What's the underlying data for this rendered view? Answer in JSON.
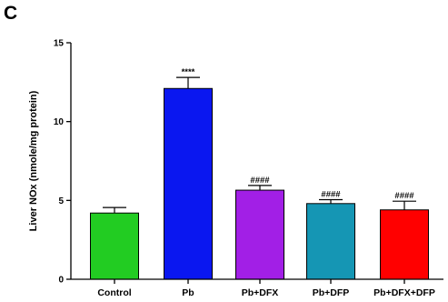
{
  "panel_label": "C",
  "chart_data": {
    "type": "bar",
    "title": "",
    "xlabel": "",
    "ylabel": "Liver NOx (nmole/mg protein)",
    "ylim": [
      0,
      15
    ],
    "yticks": [
      0,
      5,
      10,
      15
    ],
    "grid": false,
    "categories": [
      "Control",
      "Pb",
      "Pb+DFX",
      "Pb+DFP",
      "Pb+DFX+DFP"
    ],
    "values": [
      4.2,
      12.1,
      5.65,
      4.8,
      4.4
    ],
    "errors": [
      0.35,
      0.7,
      0.3,
      0.25,
      0.55
    ],
    "colors": [
      "#22cc22",
      "#0a17f0",
      "#a21fe6",
      "#1596b4",
      "#ff0000"
    ],
    "annotations": [
      "",
      "****",
      "####",
      "####",
      "####"
    ]
  }
}
